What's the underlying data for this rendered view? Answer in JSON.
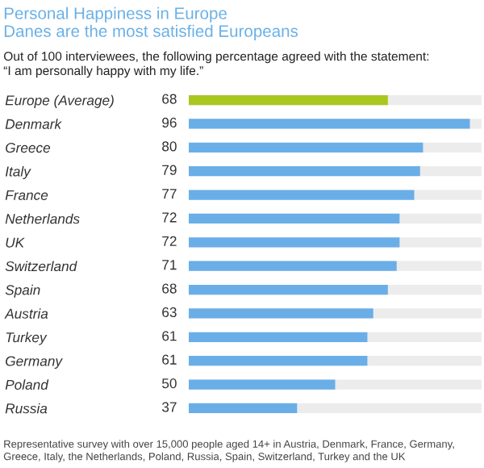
{
  "chart_data": {
    "type": "bar",
    "orientation": "horizontal",
    "title": "Personal Happiness in Europe",
    "subtitle": "Danes are the most satisfied Europeans",
    "annotations": [
      "Out of 100 interviewees, the following percentage agreed with the statement:\n“I am personally happy with my life.”",
      "Representative survey with over 15,000 people aged 14+ in Austria, Denmark, France, Germany,\nGreece, Italy, the Netherlands, Poland, Russia, Spain, Switzerland, Turkey and the UK"
    ],
    "categories": [
      "Europe (Average)",
      "Denmark",
      "Greece",
      "Italy",
      "France",
      "Netherlands",
      "UK",
      "Switzerland",
      "Spain",
      "Austria",
      "Turkey",
      "Germany",
      "Poland",
      "Russia"
    ],
    "values": [
      68,
      96,
      80,
      79,
      77,
      72,
      72,
      71,
      68,
      63,
      61,
      61,
      50,
      37
    ],
    "colors": [
      "#a9c71f",
      "#6aaee8",
      "#6aaee8",
      "#6aaee8",
      "#6aaee8",
      "#6aaee8",
      "#6aaee8",
      "#6aaee8",
      "#6aaee8",
      "#6aaee8",
      "#6aaee8",
      "#6aaee8",
      "#6aaee8",
      "#6aaee8"
    ],
    "xlim": [
      0,
      100
    ],
    "data_labels": true,
    "tick_labels": "y",
    "grid": false,
    "legend": false
  }
}
